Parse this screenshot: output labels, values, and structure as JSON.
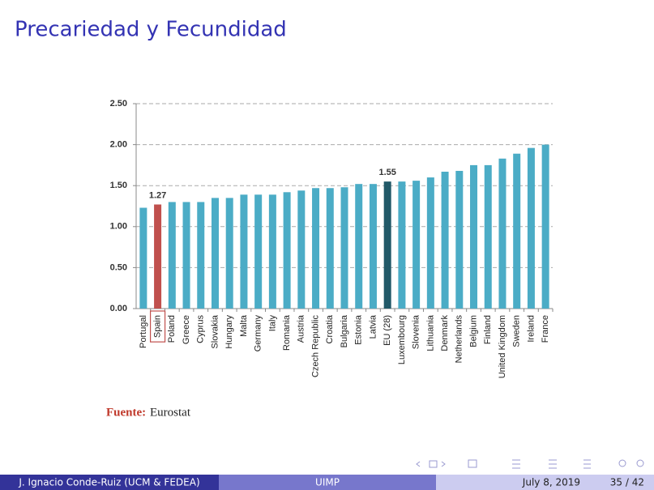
{
  "slide": {
    "title": "Precariedad y Fecundidad",
    "source_label": "Fuente:",
    "source": "Eurostat",
    "footer": {
      "author": "J. Ignacio Conde-Ruiz (UCM & FEDEA)",
      "institution": "UIMP",
      "date": "July 8, 2019",
      "page": "35 / 42"
    }
  },
  "chart_data": {
    "type": "bar",
    "categories": [
      "Portugal",
      "Spain",
      "Poland",
      "Greece",
      "Cyprus",
      "Slovakia",
      "Hungary",
      "Malta",
      "Germany",
      "Italy",
      "Romania",
      "Austria",
      "Czech Republic",
      "Croatia",
      "Bulgaria",
      "Estonia",
      "Latvia",
      "EU (28)",
      "Luxembourg",
      "Slovenia",
      "Lithuania",
      "Denmark",
      "Netherlands",
      "Belgium",
      "Finland",
      "United Kingdom",
      "Sweden",
      "Ireland",
      "France"
    ],
    "values": [
      1.23,
      1.27,
      1.3,
      1.3,
      1.3,
      1.35,
      1.35,
      1.39,
      1.39,
      1.39,
      1.42,
      1.44,
      1.47,
      1.47,
      1.48,
      1.52,
      1.52,
      1.55,
      1.55,
      1.56,
      1.6,
      1.67,
      1.68,
      1.75,
      1.75,
      1.83,
      1.89,
      1.96,
      2.0
    ],
    "value_labels": [
      null,
      "1.27",
      null,
      null,
      null,
      null,
      null,
      null,
      null,
      null,
      null,
      null,
      null,
      null,
      null,
      null,
      null,
      "1.55",
      null,
      null,
      null,
      null,
      null,
      null,
      null,
      null,
      null,
      null,
      null
    ],
    "colors": [
      "#4bacc6",
      "#c0504d",
      "#4bacc6",
      "#4bacc6",
      "#4bacc6",
      "#4bacc6",
      "#4bacc6",
      "#4bacc6",
      "#4bacc6",
      "#4bacc6",
      "#4bacc6",
      "#4bacc6",
      "#4bacc6",
      "#4bacc6",
      "#4bacc6",
      "#4bacc6",
      "#4bacc6",
      "#215968",
      "#4bacc6",
      "#4bacc6",
      "#4bacc6",
      "#4bacc6",
      "#4bacc6",
      "#4bacc6",
      "#4bacc6",
      "#4bacc6",
      "#4bacc6",
      "#4bacc6",
      "#4bacc6"
    ],
    "ylim": [
      0,
      2.5
    ],
    "yticks": [
      {
        "value": 0,
        "label": "0.00"
      },
      {
        "value": 0.5,
        "label": "0.50"
      },
      {
        "value": 1,
        "label": "1.00"
      },
      {
        "value": 1.5,
        "label": "1.50"
      },
      {
        "value": 2,
        "label": "2.00"
      },
      {
        "value": 2.5,
        "label": "2.50"
      }
    ],
    "grid": true
  }
}
